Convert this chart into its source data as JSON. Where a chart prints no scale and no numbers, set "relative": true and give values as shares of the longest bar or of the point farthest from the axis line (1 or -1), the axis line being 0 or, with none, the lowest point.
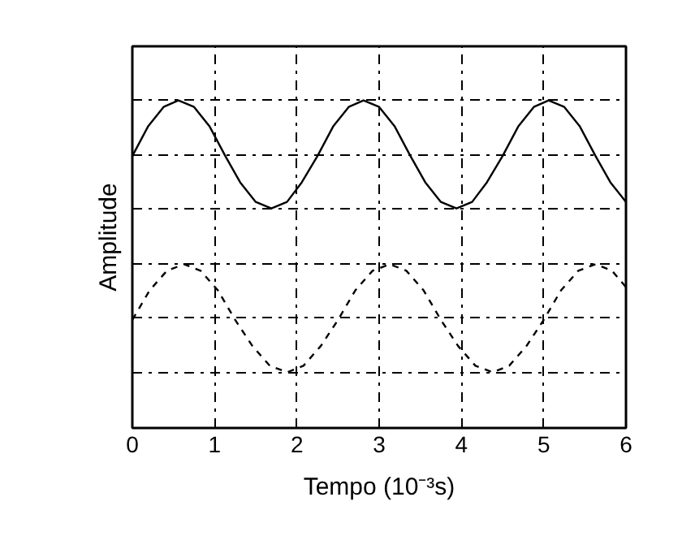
{
  "chart_data": {
    "type": "line",
    "relative": true,
    "xlabel": "Tempo (10⁻³s)",
    "ylabel": "Amplitude",
    "xlim": [
      0,
      6
    ],
    "xticks": [
      0,
      1,
      2,
      3,
      4,
      5,
      6
    ],
    "grid": true,
    "marker": "none",
    "series": [
      {
        "color": "#000000",
        "line_style": "solid",
        "x": [
          0,
          0.19,
          0.38,
          0.56,
          0.75,
          0.94,
          1.13,
          1.31,
          1.5,
          1.69,
          1.88,
          2.06,
          2.25,
          2.44,
          2.63,
          2.81,
          3.0,
          3.19,
          3.38,
          3.56,
          3.75,
          3.94,
          4.13,
          4.31,
          4.5,
          4.69,
          4.88,
          5.06,
          5.25,
          5.44,
          5.63,
          5.81,
          6.0
        ],
        "values": [
          0.83,
          0.92,
          0.98,
          1.0,
          0.98,
          0.92,
          0.83,
          0.75,
          0.69,
          0.67,
          0.69,
          0.75,
          0.83,
          0.92,
          0.98,
          1.0,
          0.98,
          0.92,
          0.83,
          0.75,
          0.69,
          0.67,
          0.69,
          0.75,
          0.83,
          0.92,
          0.98,
          1.0,
          0.98,
          0.92,
          0.83,
          0.75,
          0.69
        ]
      },
      {
        "color": "#000000",
        "line_style": "dashed",
        "x": [
          0,
          0.21,
          0.42,
          0.63,
          0.83,
          1.04,
          1.25,
          1.46,
          1.67,
          1.88,
          2.08,
          2.29,
          2.5,
          2.71,
          2.92,
          3.13,
          3.33,
          3.54,
          3.75,
          3.96,
          4.17,
          4.38,
          4.58,
          4.79,
          5.0,
          5.21,
          5.42,
          5.63,
          5.83,
          6.0
        ],
        "values": [
          0.33,
          0.42,
          0.48,
          0.5,
          0.48,
          0.42,
          0.33,
          0.25,
          0.19,
          0.17,
          0.19,
          0.25,
          0.33,
          0.42,
          0.48,
          0.5,
          0.48,
          0.42,
          0.33,
          0.25,
          0.19,
          0.17,
          0.19,
          0.25,
          0.33,
          0.42,
          0.48,
          0.5,
          0.48,
          0.43
        ]
      }
    ]
  }
}
